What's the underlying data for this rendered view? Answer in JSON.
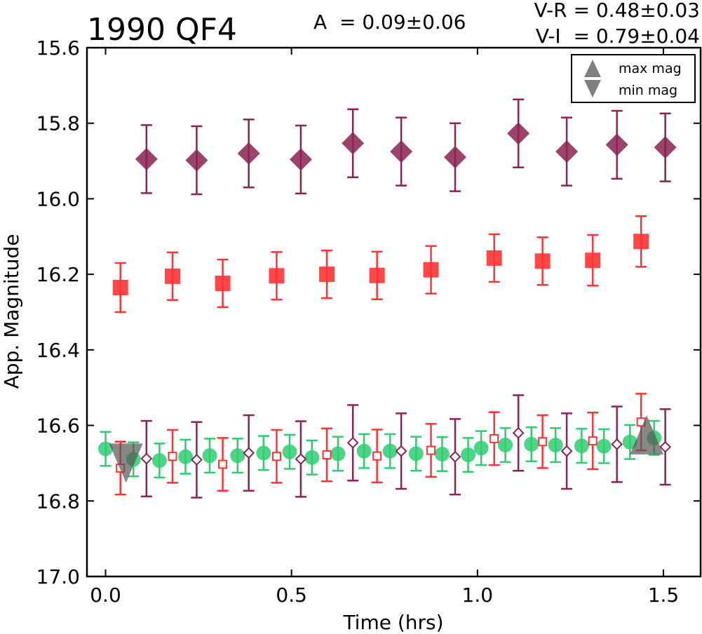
{
  "chart_data": {
    "type": "scatter",
    "title": "1990 QF4",
    "annotations": {
      "amplitude": "A  = 0.09±0.06",
      "v_r": "V-R = 0.48±0.03",
      "v_i": "V-I  = 0.79±0.04"
    },
    "xlabel": "Time (hrs)",
    "ylabel": "App. Magnitude",
    "xlim": [
      -0.05,
      1.6
    ],
    "ylim": [
      17.0,
      15.6
    ],
    "y_inverted": true,
    "x_ticks": [
      "0.0",
      "0.5",
      "1.0",
      "1.5"
    ],
    "x_tick_values": [
      0.0,
      0.5,
      1.0,
      1.5
    ],
    "y_ticks": [
      "15.6",
      "15.8",
      "16.0",
      "16.2",
      "16.4",
      "16.6",
      "16.8",
      "17.0"
    ],
    "y_tick_values": [
      15.6,
      15.8,
      16.0,
      16.2,
      16.4,
      16.6,
      16.8,
      17.0
    ],
    "legend": {
      "placement": "top-right",
      "entries": [
        {
          "label": "max mag",
          "marker": "triangle-up"
        },
        {
          "label": "min mag",
          "marker": "triangle-down"
        }
      ]
    },
    "grid": false,
    "series": [
      {
        "marker": "diamond-filled",
        "color": "#8b2252",
        "points": [
          {
            "x": 0.11,
            "y": 15.895,
            "err": 0.09
          },
          {
            "x": 0.245,
            "y": 15.898,
            "err": 0.09
          },
          {
            "x": 0.385,
            "y": 15.88,
            "err": 0.09
          },
          {
            "x": 0.525,
            "y": 15.896,
            "err": 0.09
          },
          {
            "x": 0.665,
            "y": 15.853,
            "err": 0.09
          },
          {
            "x": 0.795,
            "y": 15.875,
            "err": 0.09
          },
          {
            "x": 0.94,
            "y": 15.89,
            "err": 0.09
          },
          {
            "x": 1.11,
            "y": 15.827,
            "err": 0.09
          },
          {
            "x": 1.24,
            "y": 15.875,
            "err": 0.09
          },
          {
            "x": 1.375,
            "y": 15.857,
            "err": 0.09
          },
          {
            "x": 1.505,
            "y": 15.864,
            "err": 0.09
          }
        ]
      },
      {
        "marker": "square-filled",
        "color": "#ff3333",
        "points": [
          {
            "x": 0.04,
            "y": 16.235,
            "err": 0.065
          },
          {
            "x": 0.18,
            "y": 16.205,
            "err": 0.063
          },
          {
            "x": 0.315,
            "y": 16.224,
            "err": 0.063
          },
          {
            "x": 0.46,
            "y": 16.204,
            "err": 0.063
          },
          {
            "x": 0.595,
            "y": 16.2,
            "err": 0.063
          },
          {
            "x": 0.73,
            "y": 16.203,
            "err": 0.063
          },
          {
            "x": 0.875,
            "y": 16.188,
            "err": 0.063
          },
          {
            "x": 1.045,
            "y": 16.157,
            "err": 0.063
          },
          {
            "x": 1.175,
            "y": 16.165,
            "err": 0.063
          },
          {
            "x": 1.31,
            "y": 16.163,
            "err": 0.067
          },
          {
            "x": 1.44,
            "y": 16.113,
            "err": 0.067
          }
        ]
      },
      {
        "marker": "circle-filled",
        "color": "#2ecc71",
        "points": [
          {
            "x": 0.0,
            "y": 16.662,
            "err": 0.045
          },
          {
            "x": 0.075,
            "y": 16.69,
            "err": 0.045
          },
          {
            "x": 0.145,
            "y": 16.693,
            "err": 0.045
          },
          {
            "x": 0.215,
            "y": 16.683,
            "err": 0.045
          },
          {
            "x": 0.28,
            "y": 16.68,
            "err": 0.045
          },
          {
            "x": 0.355,
            "y": 16.68,
            "err": 0.045
          },
          {
            "x": 0.425,
            "y": 16.673,
            "err": 0.045
          },
          {
            "x": 0.495,
            "y": 16.67,
            "err": 0.045
          },
          {
            "x": 0.555,
            "y": 16.685,
            "err": 0.045
          },
          {
            "x": 0.625,
            "y": 16.675,
            "err": 0.045
          },
          {
            "x": 0.695,
            "y": 16.668,
            "err": 0.045
          },
          {
            "x": 0.765,
            "y": 16.668,
            "err": 0.045
          },
          {
            "x": 0.835,
            "y": 16.675,
            "err": 0.045
          },
          {
            "x": 0.905,
            "y": 16.676,
            "err": 0.045
          },
          {
            "x": 0.975,
            "y": 16.678,
            "err": 0.045
          },
          {
            "x": 1.01,
            "y": 16.66,
            "err": 0.045
          },
          {
            "x": 1.075,
            "y": 16.652,
            "err": 0.045
          },
          {
            "x": 1.145,
            "y": 16.65,
            "err": 0.045
          },
          {
            "x": 1.21,
            "y": 16.652,
            "err": 0.045
          },
          {
            "x": 1.28,
            "y": 16.654,
            "err": 0.045
          },
          {
            "x": 1.34,
            "y": 16.655,
            "err": 0.045
          },
          {
            "x": 1.41,
            "y": 16.644,
            "err": 0.045
          },
          {
            "x": 1.475,
            "y": 16.633,
            "err": 0.045
          }
        ]
      },
      {
        "marker": "square-open",
        "color": "#ff3333",
        "points": [
          {
            "x": 0.04,
            "y": 16.713,
            "err": 0.07
          },
          {
            "x": 0.18,
            "y": 16.682,
            "err": 0.07
          },
          {
            "x": 0.315,
            "y": 16.703,
            "err": 0.07
          },
          {
            "x": 0.46,
            "y": 16.682,
            "err": 0.07
          },
          {
            "x": 0.595,
            "y": 16.678,
            "err": 0.07
          },
          {
            "x": 0.73,
            "y": 16.681,
            "err": 0.07
          },
          {
            "x": 0.875,
            "y": 16.666,
            "err": 0.07
          },
          {
            "x": 1.045,
            "y": 16.635,
            "err": 0.07
          },
          {
            "x": 1.175,
            "y": 16.643,
            "err": 0.07
          },
          {
            "x": 1.31,
            "y": 16.641,
            "err": 0.075
          },
          {
            "x": 1.44,
            "y": 16.591,
            "err": 0.075
          }
        ]
      },
      {
        "marker": "diamond-open",
        "color": "#8b2252",
        "points": [
          {
            "x": 0.11,
            "y": 16.688,
            "err": 0.1
          },
          {
            "x": 0.245,
            "y": 16.691,
            "err": 0.1
          },
          {
            "x": 0.385,
            "y": 16.673,
            "err": 0.1
          },
          {
            "x": 0.525,
            "y": 16.689,
            "err": 0.1
          },
          {
            "x": 0.665,
            "y": 16.646,
            "err": 0.1
          },
          {
            "x": 0.795,
            "y": 16.668,
            "err": 0.1
          },
          {
            "x": 0.94,
            "y": 16.683,
            "err": 0.1
          },
          {
            "x": 1.11,
            "y": 16.62,
            "err": 0.1
          },
          {
            "x": 1.24,
            "y": 16.668,
            "err": 0.1
          },
          {
            "x": 1.375,
            "y": 16.65,
            "err": 0.1
          },
          {
            "x": 1.505,
            "y": 16.657,
            "err": 0.1
          }
        ]
      }
    ],
    "extrema_markers": [
      {
        "kind": "min mag",
        "marker": "triangle-down",
        "x": 0.055,
        "y": 16.7
      },
      {
        "kind": "max mag",
        "marker": "triangle-up",
        "x": 1.455,
        "y": 16.625
      }
    ],
    "colors": {
      "extrema": "#555555",
      "axis": "#000000"
    }
  }
}
